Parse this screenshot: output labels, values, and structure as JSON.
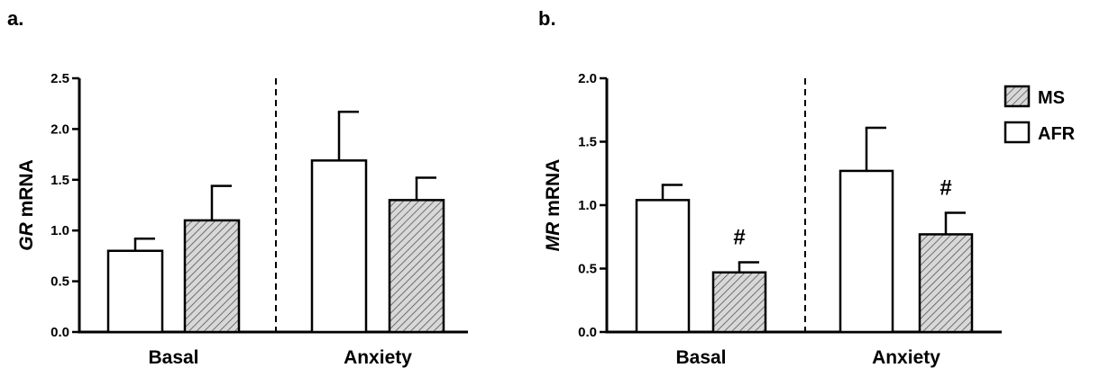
{
  "legend": {
    "entries": [
      {
        "label": "MS",
        "pattern": "hatched"
      },
      {
        "label": "AFR",
        "pattern": "open"
      }
    ]
  },
  "colors": {
    "hatch_fill": "#d8d8d8",
    "hatch_line": "#555555",
    "stroke": "#000000"
  },
  "chart_data": [
    {
      "type": "bar",
      "panel_label": "a.",
      "ylabel_italic": "GR",
      "ylabel_rest": " mRNA",
      "ylim": [
        0,
        2.5
      ],
      "yticks": [
        "0.0",
        "0.5",
        "1.0",
        "1.5",
        "2.0",
        "2.5"
      ],
      "categories": [
        "Basal",
        "Anxiety"
      ],
      "divider": "dashed",
      "series": [
        {
          "name": "AFR",
          "values": [
            0.8,
            1.69
          ],
          "errors": [
            0.12,
            0.48
          ]
        },
        {
          "name": "MS",
          "values": [
            1.1,
            1.3
          ],
          "errors": [
            0.34,
            0.22
          ]
        }
      ],
      "annotations": []
    },
    {
      "type": "bar",
      "panel_label": "b.",
      "ylabel_italic": "MR",
      "ylabel_rest": " mRNA",
      "ylim": [
        0,
        2.0
      ],
      "yticks": [
        "0.0",
        "0.5",
        "1.0",
        "1.5",
        "2.0"
      ],
      "categories": [
        "Basal",
        "Anxiety"
      ],
      "divider": "dashed",
      "series": [
        {
          "name": "AFR",
          "values": [
            1.04,
            1.27
          ],
          "errors": [
            0.12,
            0.34
          ]
        },
        {
          "name": "MS",
          "values": [
            0.47,
            0.77
          ],
          "errors": [
            0.08,
            0.17
          ]
        }
      ],
      "annotations": [
        {
          "category": "Basal",
          "series": "MS",
          "text": "#"
        },
        {
          "category": "Anxiety",
          "series": "MS",
          "text": "#"
        }
      ]
    }
  ]
}
